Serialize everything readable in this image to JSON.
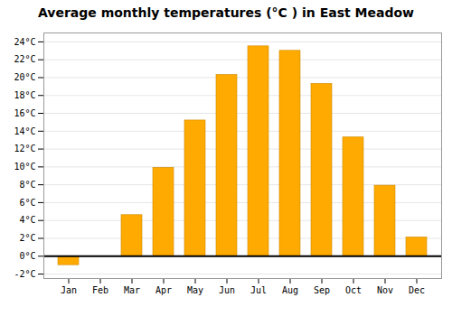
{
  "chart_data": {
    "type": "bar",
    "title": "Average monthly temperatures (°C ) in East Meadow",
    "categories": [
      "Jan",
      "Feb",
      "Mar",
      "Apr",
      "May",
      "Jun",
      "Jul",
      "Aug",
      "Sep",
      "Oct",
      "Nov",
      "Dec"
    ],
    "values": [
      -1.0,
      0.0,
      4.6,
      9.9,
      15.2,
      20.3,
      23.5,
      23.0,
      19.3,
      13.3,
      7.9,
      2.1
    ],
    "color": "#FFAA00",
    "ylim": [
      -2.5,
      25
    ],
    "yticks": [
      {
        "value": -2,
        "label": "-2°C"
      },
      {
        "value": 0,
        "label": "0°C"
      },
      {
        "value": 2,
        "label": "2°C"
      },
      {
        "value": 4,
        "label": "4°C"
      },
      {
        "value": 6,
        "label": "6°C"
      },
      {
        "value": 8,
        "label": "8°C"
      },
      {
        "value": 10,
        "label": "10°C"
      },
      {
        "value": 12,
        "label": "12°C"
      },
      {
        "value": 14,
        "label": "14°C"
      },
      {
        "value": 16,
        "label": "16°C"
      },
      {
        "value": 18,
        "label": "18°C"
      },
      {
        "value": 20,
        "label": "20°C"
      },
      {
        "value": 22,
        "label": "22°C"
      },
      {
        "value": 24,
        "label": "24°C"
      }
    ],
    "grid": true
  }
}
